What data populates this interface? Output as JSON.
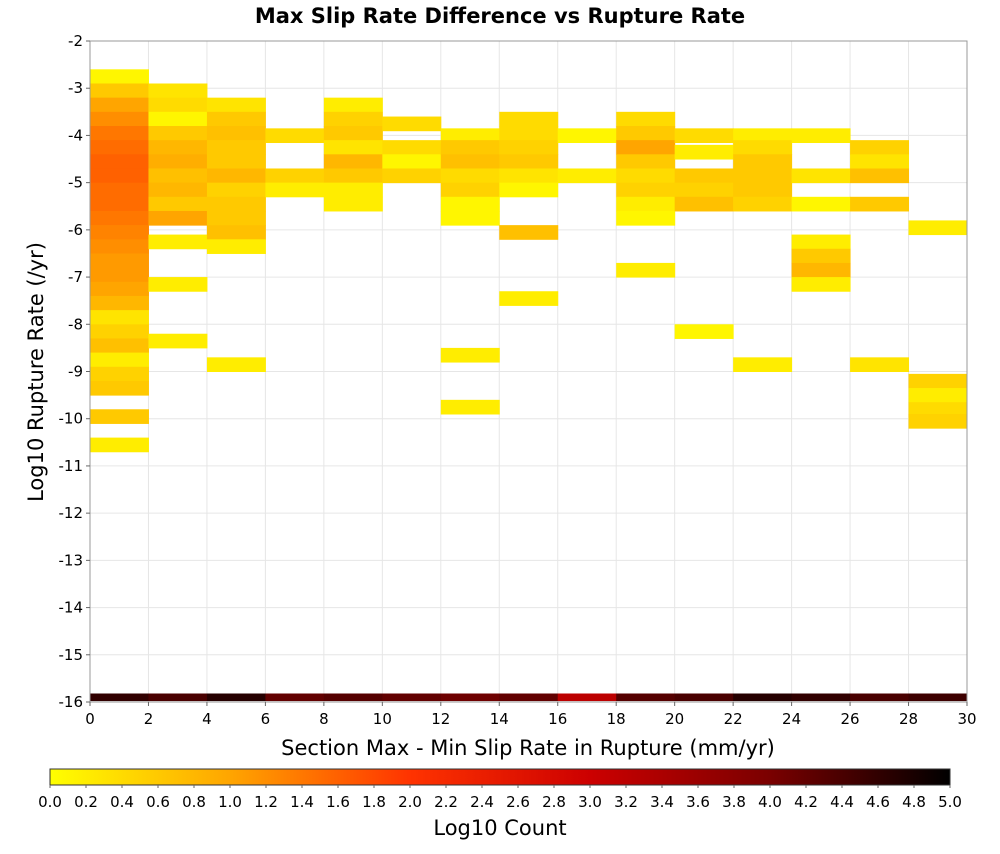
{
  "chart_data": {
    "type": "heatmap",
    "title": "Max Slip Rate Difference vs Rupture Rate",
    "xlabel": "Section Max - Min Slip Rate in Rupture (mm/yr)",
    "ylabel": "Log10 Rupture Rate (/yr)",
    "xlim": [
      0,
      30
    ],
    "ylim": [
      -16,
      -2
    ],
    "x_ticks": [
      "0",
      "2",
      "4",
      "6",
      "8",
      "10",
      "12",
      "14",
      "16",
      "18",
      "20",
      "22",
      "24",
      "26",
      "28",
      "30"
    ],
    "y_ticks": [
      "-2",
      "-3",
      "-4",
      "-5",
      "-6",
      "-7",
      "-8",
      "-9",
      "-10",
      "-11",
      "-12",
      "-13",
      "-14",
      "-15",
      "-16"
    ],
    "x_bin_width": 2,
    "y_bin_height": 0.3,
    "grid": true,
    "colorbar": {
      "label": "Log10 Count",
      "min": 0,
      "max": 5,
      "ticks": [
        "0.0",
        "0.2",
        "0.4",
        "0.6",
        "0.8",
        "1.0",
        "1.2",
        "1.4",
        "1.6",
        "1.8",
        "2.0",
        "2.2",
        "2.4",
        "2.6",
        "2.8",
        "3.0",
        "3.2",
        "3.4",
        "3.6",
        "3.8",
        "4.0",
        "4.2",
        "4.4",
        "4.6",
        "4.8",
        "5.0"
      ],
      "colors": [
        "#ffff00",
        "#ffa500",
        "#ff3300",
        "#cc0000",
        "#7a0000",
        "#000000"
      ]
    },
    "cells": [
      [
        0,
        -2.75,
        0.1
      ],
      [
        0,
        -3.05,
        0.6
      ],
      [
        0,
        -3.35,
        1.0
      ],
      [
        0,
        -3.65,
        1.2
      ],
      [
        0,
        -3.95,
        1.4
      ],
      [
        0,
        -4.25,
        1.5
      ],
      [
        0,
        -4.55,
        1.6
      ],
      [
        0,
        -4.85,
        1.6
      ],
      [
        0,
        -5.15,
        1.5
      ],
      [
        0,
        -5.45,
        1.5
      ],
      [
        0,
        -5.75,
        1.4
      ],
      [
        0,
        -6.05,
        1.3
      ],
      [
        0,
        -6.35,
        1.2
      ],
      [
        0,
        -6.65,
        1.1
      ],
      [
        0,
        -6.95,
        1.1
      ],
      [
        0,
        -7.25,
        1.0
      ],
      [
        0,
        -7.55,
        0.8
      ],
      [
        0,
        -7.85,
        0.3
      ],
      [
        0,
        -8.15,
        0.5
      ],
      [
        0,
        -8.45,
        0.7
      ],
      [
        0,
        -8.75,
        0.2
      ],
      [
        0,
        -9.05,
        0.5
      ],
      [
        0,
        -9.35,
        0.6
      ],
      [
        0,
        -9.95,
        0.6
      ],
      [
        0,
        -10.55,
        0.2
      ],
      [
        2,
        -3.05,
        0.3
      ],
      [
        2,
        -3.35,
        0.4
      ],
      [
        2,
        -3.65,
        0.1
      ],
      [
        2,
        -3.95,
        0.6
      ],
      [
        2,
        -4.25,
        0.8
      ],
      [
        2,
        -4.55,
        0.9
      ],
      [
        2,
        -4.85,
        0.7
      ],
      [
        2,
        -5.15,
        0.8
      ],
      [
        2,
        -5.45,
        0.6
      ],
      [
        2,
        -5.75,
        1.0
      ],
      [
        2,
        -6.25,
        0.2
      ],
      [
        2,
        -7.15,
        0.2
      ],
      [
        2,
        -8.35,
        0.2
      ],
      [
        4,
        -3.35,
        0.3
      ],
      [
        4,
        -3.65,
        0.6
      ],
      [
        4,
        -3.95,
        0.7
      ],
      [
        4,
        -4.25,
        0.6
      ],
      [
        4,
        -4.55,
        0.6
      ],
      [
        4,
        -4.85,
        0.8
      ],
      [
        4,
        -5.15,
        0.5
      ],
      [
        4,
        -5.45,
        0.6
      ],
      [
        4,
        -5.75,
        0.6
      ],
      [
        4,
        -6.05,
        0.7
      ],
      [
        4,
        -6.35,
        0.2
      ],
      [
        4,
        -8.85,
        0.2
      ],
      [
        6,
        -4.0,
        0.4
      ],
      [
        6,
        -4.85,
        0.5
      ],
      [
        6,
        -5.15,
        0.2
      ],
      [
        8,
        -3.35,
        0.2
      ],
      [
        8,
        -3.65,
        0.5
      ],
      [
        8,
        -3.95,
        0.6
      ],
      [
        8,
        -4.25,
        0.3
      ],
      [
        8,
        -4.55,
        0.8
      ],
      [
        8,
        -4.85,
        0.6
      ],
      [
        8,
        -5.15,
        0.2
      ],
      [
        8,
        -5.45,
        0.2
      ],
      [
        10,
        -3.75,
        0.4
      ],
      [
        10,
        -4.25,
        0.4
      ],
      [
        10,
        -4.55,
        0.1
      ],
      [
        10,
        -4.85,
        0.5
      ],
      [
        12,
        -4.0,
        0.2
      ],
      [
        12,
        -4.25,
        0.6
      ],
      [
        12,
        -4.55,
        0.7
      ],
      [
        12,
        -4.85,
        0.4
      ],
      [
        12,
        -5.15,
        0.5
      ],
      [
        12,
        -5.45,
        0.1
      ],
      [
        12,
        -5.75,
        0.1
      ],
      [
        12,
        -8.65,
        0.2
      ],
      [
        12,
        -9.75,
        0.2
      ],
      [
        14,
        -3.65,
        0.4
      ],
      [
        14,
        -3.95,
        0.4
      ],
      [
        14,
        -4.25,
        0.5
      ],
      [
        14,
        -4.55,
        0.6
      ],
      [
        14,
        -4.85,
        0.3
      ],
      [
        14,
        -5.15,
        0.1
      ],
      [
        14,
        -6.05,
        0.7
      ],
      [
        14,
        -7.45,
        0.2
      ],
      [
        16,
        -4.0,
        0.1
      ],
      [
        16,
        -4.85,
        0.2
      ],
      [
        18,
        -3.65,
        0.4
      ],
      [
        18,
        -3.95,
        0.6
      ],
      [
        18,
        -4.25,
        1.0
      ],
      [
        18,
        -4.55,
        0.6
      ],
      [
        18,
        -4.85,
        0.4
      ],
      [
        18,
        -5.15,
        0.5
      ],
      [
        18,
        -5.45,
        0.2
      ],
      [
        18,
        -5.75,
        0.1
      ],
      [
        18,
        -6.85,
        0.2
      ],
      [
        20,
        -4.0,
        0.4
      ],
      [
        20,
        -4.35,
        0.2
      ],
      [
        20,
        -4.85,
        0.6
      ],
      [
        20,
        -5.15,
        0.5
      ],
      [
        20,
        -5.45,
        0.7
      ],
      [
        20,
        -8.15,
        0.1
      ],
      [
        22,
        -4.0,
        0.2
      ],
      [
        22,
        -4.25,
        0.4
      ],
      [
        22,
        -4.55,
        0.6
      ],
      [
        22,
        -4.85,
        0.6
      ],
      [
        22,
        -5.15,
        0.6
      ],
      [
        22,
        -5.45,
        0.5
      ],
      [
        22,
        -8.85,
        0.2
      ],
      [
        24,
        -4.0,
        0.2
      ],
      [
        24,
        -4.85,
        0.3
      ],
      [
        24,
        -5.45,
        0.1
      ],
      [
        24,
        -6.25,
        0.2
      ],
      [
        24,
        -6.55,
        0.6
      ],
      [
        24,
        -6.85,
        0.8
      ],
      [
        24,
        -7.15,
        0.2
      ],
      [
        26,
        -4.25,
        0.5
      ],
      [
        26,
        -4.55,
        0.3
      ],
      [
        26,
        -4.85,
        0.7
      ],
      [
        26,
        -5.45,
        0.6
      ],
      [
        26,
        -8.85,
        0.3
      ],
      [
        28,
        -5.95,
        0.2
      ],
      [
        28,
        -9.2,
        0.5
      ],
      [
        28,
        -9.5,
        0.2
      ],
      [
        28,
        -9.8,
        0.4
      ],
      [
        28,
        -10.05,
        0.5
      ]
    ],
    "bottom_row": {
      "y": -15.9,
      "values": [
        4.6,
        4.4,
        4.7,
        4.2,
        4.3,
        4.2,
        4.1,
        4.2,
        3.2,
        4.3,
        4.4,
        4.7,
        4.6,
        4.4,
        4.5
      ]
    }
  }
}
